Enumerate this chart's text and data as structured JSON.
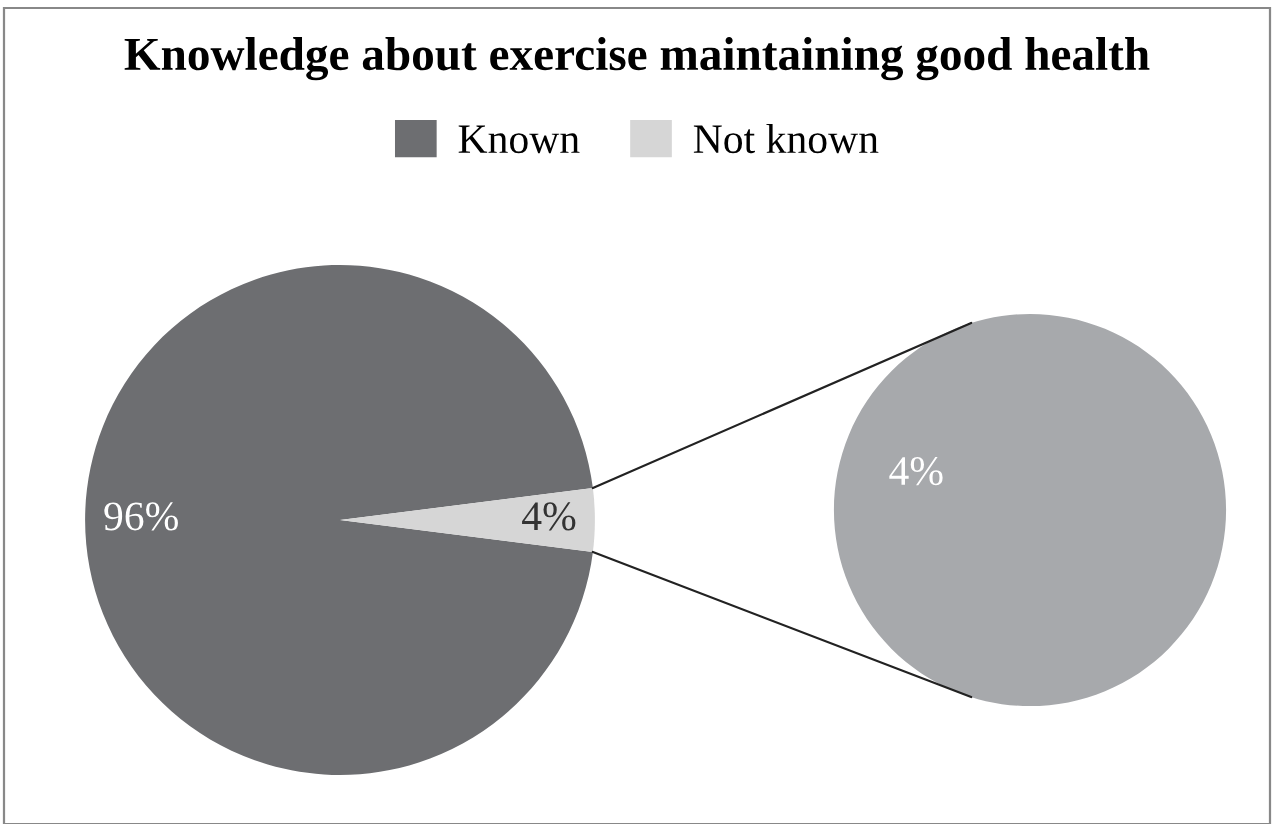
{
  "chart_data": [
    {
      "type": "pie",
      "title": "Knowledge about exercise maintaining good health",
      "categories": [
        "Known",
        "Not known"
      ],
      "values": [
        96,
        4
      ],
      "colors": [
        "#6d6e71",
        "#d6d6d6"
      ],
      "value_labels": [
        "96%",
        "4%"
      ],
      "legend": "top"
    },
    {
      "type": "pie",
      "categories": [
        null
      ],
      "values": [
        4
      ],
      "colors": [
        "#a7a9ac"
      ],
      "value_labels": [
        "4%"
      ]
    }
  ]
}
